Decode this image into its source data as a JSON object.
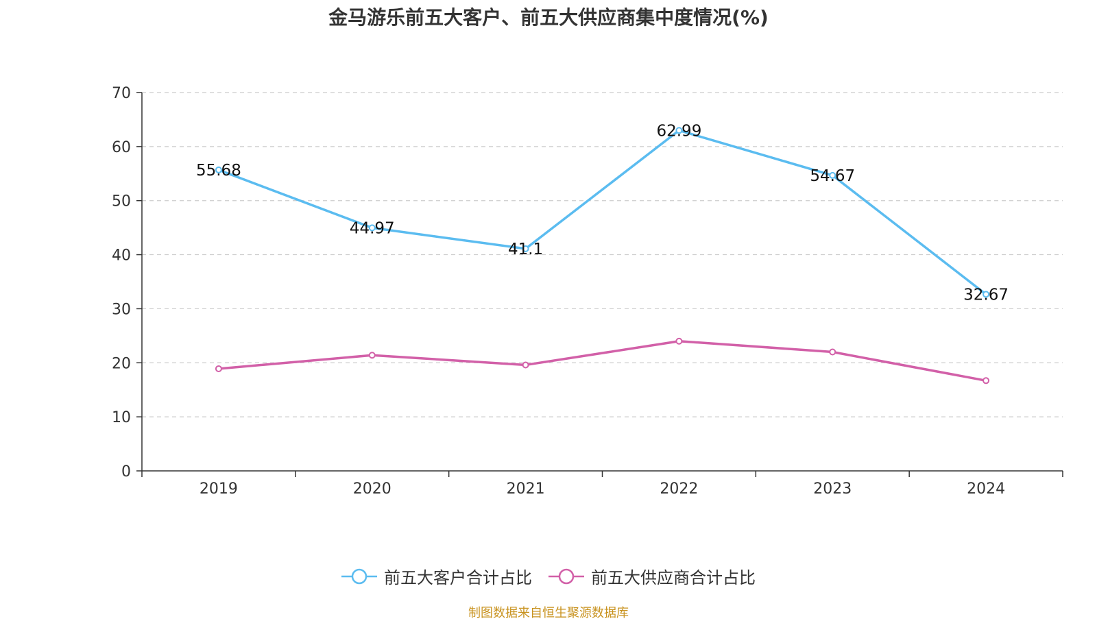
{
  "chart_data": {
    "type": "line",
    "title": "金马游乐前五大客户、前五大供应商集中度情况(%)",
    "categories": [
      "2019",
      "2020",
      "2021",
      "2022",
      "2023",
      "2024"
    ],
    "ylim": [
      0,
      70
    ],
    "yticks": [
      "0",
      "10",
      "20",
      "30",
      "40",
      "50",
      "60",
      "70"
    ],
    "grid": true,
    "legend_position": "bottom",
    "series": [
      {
        "name": "前五大客户合计占比",
        "color": "#5bbcf0",
        "values": [
          55.68,
          44.97,
          41.1,
          62.99,
          54.67,
          32.67
        ],
        "labels": [
          "55.68",
          "44.97",
          "41.1",
          "62.99",
          "54.67",
          "32.67"
        ]
      },
      {
        "name": "前五大供应商合计占比",
        "color": "#d260a8",
        "values": [
          18.9,
          21.4,
          19.6,
          24.0,
          22.0,
          16.7
        ]
      }
    ]
  },
  "footer": {
    "source": "制图数据来自恒生聚源数据库"
  }
}
